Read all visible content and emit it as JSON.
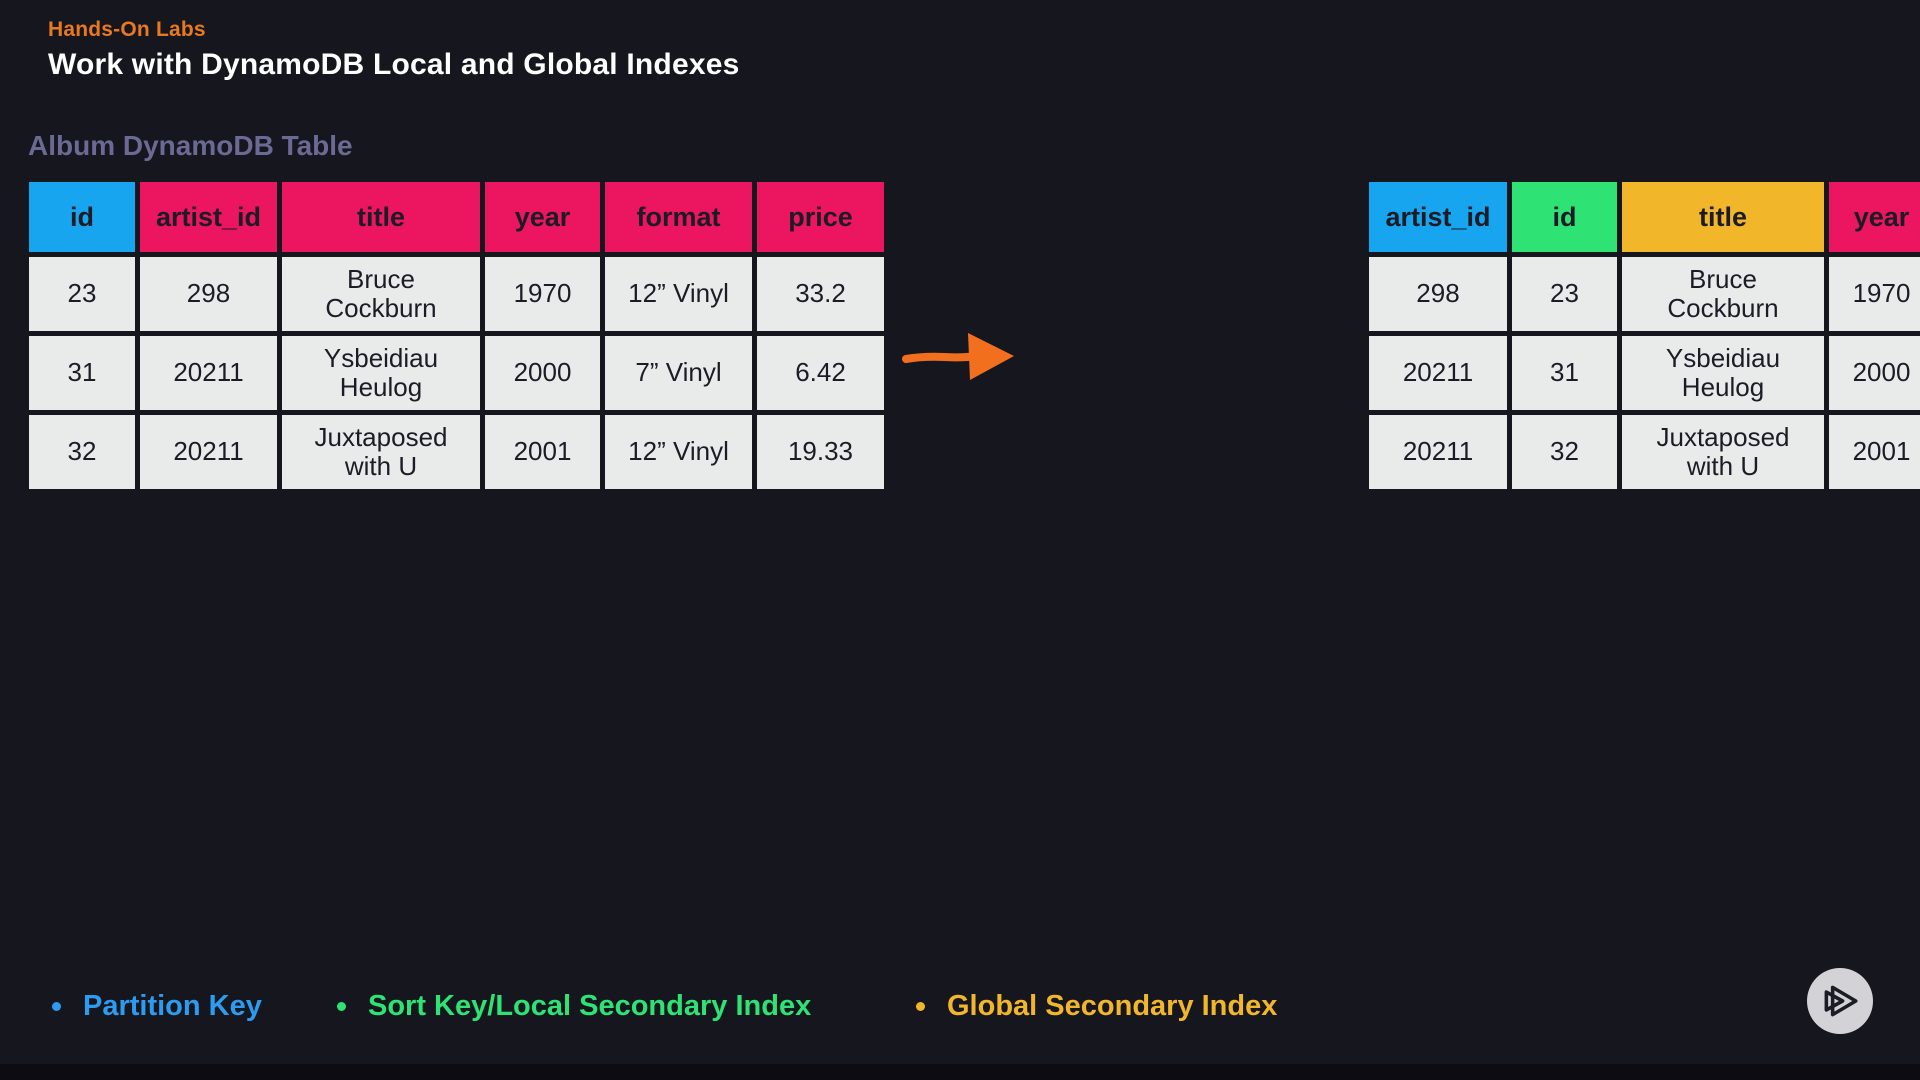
{
  "colors": {
    "background": "#16161f",
    "partition_blue": "#18a5f0",
    "pink": "#ec155f",
    "sort_green": "#2ee273",
    "gsi_yellow": "#f2b62b",
    "cell_bg": "#e9ebeb",
    "cell_text": "#1c1c26",
    "orange": "#e9791f",
    "muted_purple": "#6a6a94",
    "white": "#ffffff"
  },
  "header": {
    "eyebrow": "Hands-On Labs",
    "title": "Work with DynamoDB Local and Global Indexes"
  },
  "section_title": "Album DynamoDB Table",
  "base_table": {
    "columns": [
      {
        "label": "id",
        "color_key": "partition_blue"
      },
      {
        "label": "artist_id",
        "color_key": "pink"
      },
      {
        "label": "title",
        "color_key": "pink"
      },
      {
        "label": "year",
        "color_key": "pink"
      },
      {
        "label": "format",
        "color_key": "pink"
      },
      {
        "label": "price",
        "color_key": "pink"
      }
    ],
    "rows": [
      [
        "23",
        "298",
        "Bruce Cockburn",
        "1970",
        "12” Vinyl",
        "33.2"
      ],
      [
        "31",
        "20211",
        "Ysbeidiau Heulog",
        "2000",
        "7” Vinyl",
        "6.42"
      ],
      [
        "32",
        "20211",
        "Juxtaposed with U",
        "2001",
        "12” Vinyl",
        "19.33"
      ]
    ]
  },
  "index_table": {
    "columns": [
      {
        "label": "artist_id",
        "color_key": "partition_blue"
      },
      {
        "label": "id",
        "color_key": "sort_green"
      },
      {
        "label": "title",
        "color_key": "gsi_yellow"
      },
      {
        "label": "year",
        "color_key": "pink"
      }
    ],
    "rows": [
      [
        "298",
        "23",
        "Bruce Cockburn",
        "1970"
      ],
      [
        "20211",
        "31",
        "Ysbeidiau Heulog",
        "2000"
      ],
      [
        "20211",
        "32",
        "Juxtaposed with U",
        "2001"
      ]
    ]
  },
  "legend": {
    "items": [
      {
        "label": "Partition Key",
        "color": "#2d9bf0"
      },
      {
        "label": "Sort Key/Local Secondary Index",
        "color": "#2ee273"
      },
      {
        "label": "Global Secondary Index",
        "color": "#f2b62b"
      }
    ]
  },
  "arrow": {
    "color": "#f2701d"
  },
  "next_button": {
    "icon": "pluralsight-logo"
  }
}
